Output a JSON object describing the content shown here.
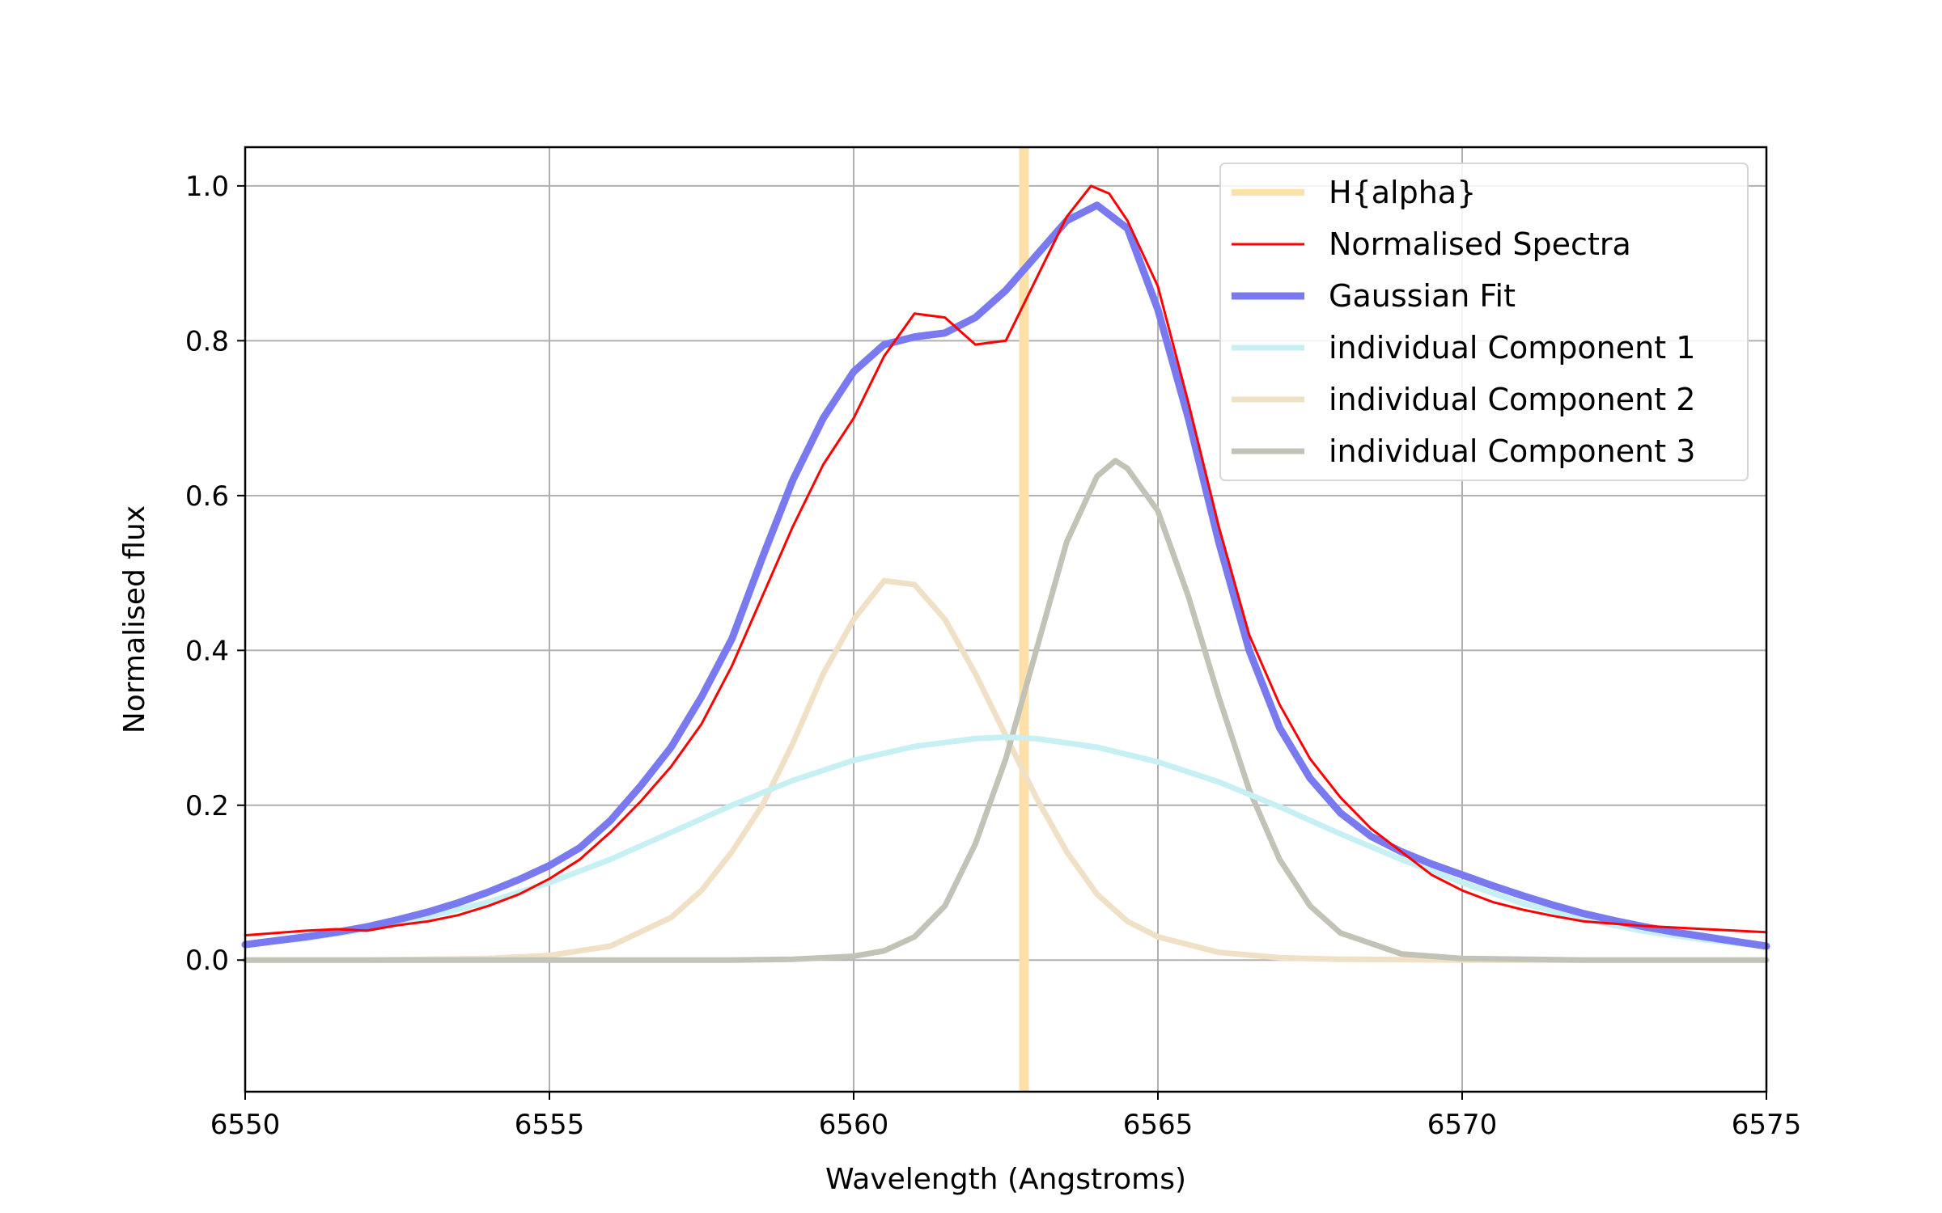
{
  "chart_data": {
    "type": "line",
    "title": "",
    "xlabel": "Wavelength (Angstroms)",
    "ylabel": "Normalised flux",
    "xlim": [
      6550,
      6575
    ],
    "ylim": [
      -0.17,
      1.05
    ],
    "xticks": [
      6550,
      6555,
      6560,
      6565,
      6570,
      6575
    ],
    "yticks": [
      0.0,
      0.2,
      0.4,
      0.6,
      0.8,
      1.0
    ],
    "xtick_labels": [
      "6550",
      "6555",
      "6560",
      "6565",
      "6570",
      "6575"
    ],
    "ytick_labels": [
      "0.0",
      "0.2",
      "0.4",
      "0.6",
      "0.8",
      "1.0"
    ],
    "grid": true,
    "legend_position": "top-right",
    "vline": {
      "name": "H{alpha}",
      "x": 6562.8,
      "color": "#ffe0a8"
    },
    "series": [
      {
        "name": "Normalised Spectra",
        "color": "#ff0000",
        "x": [
          6550.0,
          6550.5,
          6551.0,
          6551.5,
          6552.0,
          6552.5,
          6553.0,
          6553.5,
          6554.0,
          6554.5,
          6555.0,
          6555.5,
          6556.0,
          6556.5,
          6557.0,
          6557.5,
          6558.0,
          6558.5,
          6559.0,
          6559.5,
          6560.0,
          6560.5,
          6561.0,
          6561.5,
          6562.0,
          6562.5,
          6563.0,
          6563.5,
          6563.9,
          6564.2,
          6564.5,
          6565.0,
          6565.5,
          6566.0,
          6566.5,
          6567.0,
          6567.5,
          6568.0,
          6568.5,
          6569.0,
          6569.5,
          6570.0,
          6570.5,
          6571.0,
          6571.5,
          6572.0,
          6572.5,
          6573.0,
          6573.5,
          6574.0,
          6574.5,
          6575.0
        ],
        "y": [
          0.032,
          0.035,
          0.038,
          0.04,
          0.038,
          0.045,
          0.05,
          0.058,
          0.07,
          0.085,
          0.105,
          0.13,
          0.165,
          0.205,
          0.25,
          0.305,
          0.38,
          0.47,
          0.56,
          0.64,
          0.7,
          0.78,
          0.835,
          0.83,
          0.795,
          0.8,
          0.88,
          0.96,
          1.0,
          0.99,
          0.955,
          0.87,
          0.72,
          0.56,
          0.42,
          0.33,
          0.26,
          0.21,
          0.17,
          0.14,
          0.11,
          0.09,
          0.075,
          0.065,
          0.057,
          0.05,
          0.047,
          0.044,
          0.042,
          0.04,
          0.038,
          0.036
        ],
        "stroke_width": 3
      },
      {
        "name": "Gaussian Fit",
        "color": "#7a7af0",
        "x": [
          6550.0,
          6550.5,
          6551.0,
          6551.5,
          6552.0,
          6552.5,
          6553.0,
          6553.5,
          6554.0,
          6554.5,
          6555.0,
          6555.5,
          6556.0,
          6556.5,
          6557.0,
          6557.5,
          6558.0,
          6558.5,
          6559.0,
          6559.5,
          6560.0,
          6560.5,
          6561.0,
          6561.5,
          6562.0,
          6562.5,
          6563.0,
          6563.5,
          6564.0,
          6564.5,
          6565.0,
          6565.5,
          6566.0,
          6566.5,
          6567.0,
          6567.5,
          6568.0,
          6568.5,
          6569.0,
          6569.5,
          6570.0,
          6570.5,
          6571.0,
          6571.5,
          6572.0,
          6572.5,
          6573.0,
          6573.5,
          6574.0,
          6574.5,
          6575.0
        ],
        "y": [
          0.02,
          0.025,
          0.03,
          0.036,
          0.043,
          0.052,
          0.062,
          0.074,
          0.088,
          0.104,
          0.122,
          0.145,
          0.18,
          0.225,
          0.275,
          0.34,
          0.415,
          0.52,
          0.62,
          0.7,
          0.76,
          0.795,
          0.805,
          0.81,
          0.83,
          0.865,
          0.91,
          0.955,
          0.975,
          0.945,
          0.84,
          0.7,
          0.54,
          0.4,
          0.3,
          0.235,
          0.19,
          0.16,
          0.14,
          0.124,
          0.11,
          0.096,
          0.083,
          0.071,
          0.06,
          0.051,
          0.043,
          0.036,
          0.03,
          0.024,
          0.018
        ],
        "stroke_width": 9
      },
      {
        "name": "individual Component 1",
        "color": "#c6f0f3",
        "x": [
          6550.0,
          6551.0,
          6552.0,
          6553.0,
          6554.0,
          6555.0,
          6556.0,
          6557.0,
          6558.0,
          6559.0,
          6560.0,
          6561.0,
          6562.0,
          6562.5,
          6563.0,
          6564.0,
          6565.0,
          6566.0,
          6567.0,
          6568.0,
          6569.0,
          6570.0,
          6571.0,
          6572.0,
          6573.0,
          6574.0,
          6575.0
        ],
        "y": [
          0.02,
          0.028,
          0.04,
          0.056,
          0.075,
          0.1,
          0.13,
          0.165,
          0.2,
          0.232,
          0.258,
          0.276,
          0.286,
          0.288,
          0.286,
          0.275,
          0.256,
          0.23,
          0.198,
          0.163,
          0.13,
          0.1,
          0.073,
          0.053,
          0.037,
          0.026,
          0.018
        ],
        "stroke_width": 7
      },
      {
        "name": "individual Component 2",
        "color": "#f0e0c6",
        "x": [
          6550.0,
          6552.0,
          6554.0,
          6555.0,
          6556.0,
          6557.0,
          6557.5,
          6558.0,
          6558.5,
          6559.0,
          6559.5,
          6560.0,
          6560.5,
          6561.0,
          6561.5,
          6562.0,
          6562.5,
          6563.0,
          6563.5,
          6564.0,
          6564.5,
          6565.0,
          6566.0,
          6567.0,
          6568.0,
          6570.0,
          6575.0
        ],
        "y": [
          0.0,
          0.0,
          0.002,
          0.006,
          0.018,
          0.055,
          0.09,
          0.14,
          0.2,
          0.28,
          0.37,
          0.44,
          0.49,
          0.485,
          0.44,
          0.37,
          0.29,
          0.21,
          0.14,
          0.085,
          0.05,
          0.03,
          0.01,
          0.003,
          0.001,
          0.0,
          0.0
        ],
        "stroke_width": 7
      },
      {
        "name": "individual Component 3",
        "color": "#c2c3b6",
        "x": [
          6550.0,
          6555.0,
          6558.0,
          6559.0,
          6560.0,
          6560.5,
          6561.0,
          6561.5,
          6562.0,
          6562.5,
          6563.0,
          6563.5,
          6564.0,
          6564.3,
          6564.5,
          6565.0,
          6565.5,
          6566.0,
          6566.5,
          6567.0,
          6567.5,
          6568.0,
          6569.0,
          6570.0,
          6572.0,
          6575.0
        ],
        "y": [
          0.0,
          0.0,
          0.0,
          0.001,
          0.005,
          0.012,
          0.03,
          0.07,
          0.15,
          0.26,
          0.4,
          0.54,
          0.625,
          0.645,
          0.635,
          0.58,
          0.47,
          0.34,
          0.22,
          0.13,
          0.07,
          0.035,
          0.008,
          0.002,
          0.0,
          0.0
        ],
        "stroke_width": 7
      }
    ],
    "legend": [
      "H{alpha}",
      "Normalised Spectra",
      "Gaussian Fit",
      "individual Component 1",
      "individual Component 2",
      "individual Component 3"
    ]
  }
}
